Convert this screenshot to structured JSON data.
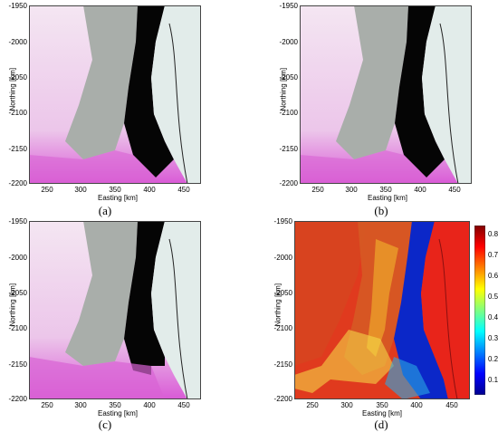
{
  "panels": [
    {
      "id": "a",
      "caption": "(a)",
      "xlabel": "Easting [km]",
      "ylabel": "Northing [km]",
      "xticks": [
        "250",
        "300",
        "350",
        "400",
        "450"
      ],
      "yticks": [
        "-1950",
        "-2000",
        "-2050",
        "-2100",
        "-2150",
        "-2200"
      ]
    },
    {
      "id": "b",
      "caption": "(b)",
      "xlabel": "Easting [km]",
      "ylabel": "Northing [km]",
      "xticks": [
        "250",
        "300",
        "350",
        "400",
        "450"
      ],
      "yticks": [
        "-1950",
        "-2000",
        "-2050",
        "-2100",
        "-2150",
        "-2200"
      ]
    },
    {
      "id": "c",
      "caption": "(c)",
      "xlabel": "Easting [km]",
      "ylabel": "Northing [km]",
      "xticks": [
        "250",
        "300",
        "350",
        "400",
        "450"
      ],
      "yticks": [
        "-1950",
        "-2000",
        "-2050",
        "-2100",
        "-2150",
        "-2200"
      ]
    },
    {
      "id": "d",
      "caption": "(d)",
      "xlabel": "Easting [km]",
      "ylabel": "Northing [km]",
      "xticks": [
        "250",
        "300",
        "350",
        "400",
        "450"
      ],
      "yticks": [
        "-1950",
        "-2000",
        "-2050",
        "-2100",
        "-2150",
        "-2200"
      ]
    }
  ],
  "colorbar": {
    "ticks": [
      "0.8",
      "0.7",
      "0.6",
      "0.5",
      "0.4",
      "0.3",
      "0.2",
      "0.1"
    ]
  }
}
